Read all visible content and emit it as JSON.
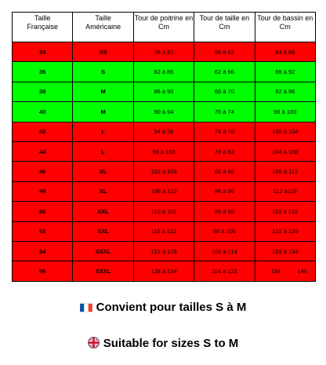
{
  "table": {
    "headers": [
      "Taille\nFrançaise",
      "Taille\nAméricaine",
      "Tour de poitrine en\nCm",
      "Tour de taille en\nCm",
      "Tour de bassin en\nCm"
    ],
    "rows": [
      {
        "fr": "34",
        "us": "XS",
        "chest": "76 à 82",
        "waist": "58 à 62",
        "hips": "84 à 88",
        "color": "red"
      },
      {
        "fr": "36",
        "us": "S",
        "chest": "82 à 86",
        "waist": "62 à 66",
        "hips": "88 à 92",
        "color": "green"
      },
      {
        "fr": "38",
        "us": "M",
        "chest": "86 à 90",
        "waist": "66 à 70",
        "hips": "92 à 96",
        "color": "green"
      },
      {
        "fr": "40",
        "us": "M",
        "chest": "90 à 94",
        "waist": "70 à 74",
        "hips": "96 à 100",
        "color": "green"
      },
      {
        "fr": "42",
        "us": "L",
        "chest": "94 à 98",
        "waist": "74 à 78",
        "hips": "100 à 104",
        "color": "red"
      },
      {
        "fr": "44",
        "us": "L",
        "chest": "98 à 102",
        "waist": "78 à 82",
        "hips": "104 à 108",
        "color": "red"
      },
      {
        "fr": "46",
        "us": "XL",
        "chest": "102 à 106",
        "waist": "82 à 86",
        "hips": "108 à 112",
        "color": "red"
      },
      {
        "fr": "48",
        "us": "XL",
        "chest": "106 à 110",
        "waist": "86 à 90",
        "hips": "112 à116",
        "color": "red"
      },
      {
        "fr": "50",
        "us": "XXL",
        "chest": "110 à 116",
        "waist": "90 à 98",
        "hips": "116 à 122",
        "color": "red"
      },
      {
        "fr": "52",
        "us": "XXL",
        "chest": "116 à 122",
        "waist": "98 à 106",
        "hips": "122 à 128",
        "color": "red"
      },
      {
        "fr": "54",
        "us": "XXXL",
        "chest": "122 à 128",
        "waist": "106 à 114",
        "hips": "128 à 134",
        "color": "red"
      },
      {
        "fr": "56",
        "us": "XXXL",
        "chest": "128 à 134",
        "waist": "114 à 122",
        "hips_a": "134",
        "hips_b": "140",
        "color": "red"
      }
    ]
  },
  "captions": {
    "fr": "Convient pour tailles S à M",
    "en": "Suitable for sizes S to M"
  },
  "colors": {
    "red_row": "#ff0000",
    "green_row": "#00ff00",
    "flag_blue": "#0055a4",
    "flag_red": "#ef4135",
    "uk_blue": "#012169",
    "uk_red": "#c8102e"
  },
  "icons": [
    "flag-france-icon",
    "flag-uk-icon"
  ]
}
